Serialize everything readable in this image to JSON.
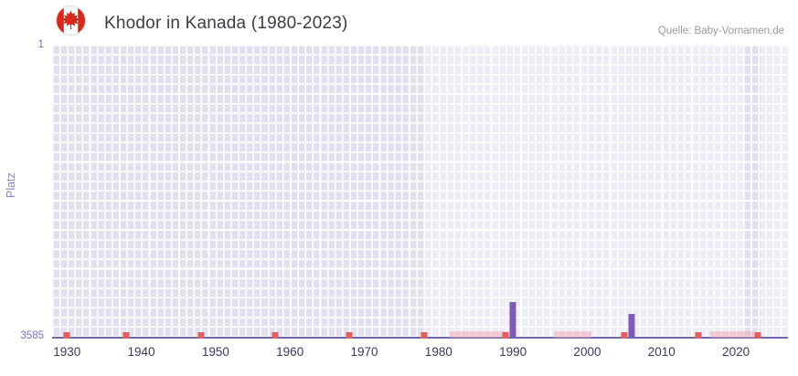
{
  "header": {
    "title": "Khodor in Kanada (1980-2023)",
    "source": "Quelle: Baby-Vornamen.de",
    "flag_icon": "canada-flag"
  },
  "chart_data": {
    "type": "bar",
    "title": "Khodor in Kanada (1980-2023)",
    "xlabel": "",
    "ylabel": "Platz",
    "y_axis": {
      "min": 1,
      "max": 3585,
      "inverted": true,
      "top_tick": "1",
      "bottom_tick": "3585"
    },
    "x_axis": {
      "domain": [
        1928,
        2027
      ],
      "ticks": [
        1930,
        1940,
        1950,
        1960,
        1970,
        1980,
        1990,
        2000,
        2010,
        2020
      ]
    },
    "bars": [
      {
        "year": 1990,
        "rank": 3160
      },
      {
        "year": 2006,
        "rank": 3310
      }
    ],
    "no_data_marker_years": [
      1930,
      1938,
      1948,
      1958,
      1968,
      1978,
      1989,
      2005,
      2015,
      2023
    ],
    "faint_marker_ranges": [
      [
        1982,
        1989
      ],
      [
        1996,
        2000
      ],
      [
        2017,
        2022
      ]
    ],
    "highlight_bands": [
      [
        1978,
        2021
      ],
      [
        2023.3,
        2027
      ]
    ],
    "grid": true,
    "legend": false,
    "colors": {
      "bar": "#7e5bb5",
      "no_data_marker": "#e06060",
      "faint_marker": "#f0aab6",
      "axis_line": "#7064ab",
      "grid_bg": "#e2e0ee",
      "x_tick_label": "#3b3760",
      "y_tick_label": "#7b6fb5",
      "title_text": "#3c3c46",
      "flag_red": "#d52b1e"
    }
  }
}
